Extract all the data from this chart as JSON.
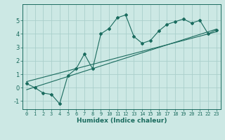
{
  "xlabel": "Humidex (Indice chaleur)",
  "ylabel": "",
  "bg_color": "#cce8e4",
  "grid_color": "#aacfcb",
  "line_color": "#1a6b5e",
  "xlim": [
    -0.5,
    23.5
  ],
  "ylim": [
    -1.6,
    6.2
  ],
  "xticks": [
    0,
    1,
    2,
    3,
    4,
    5,
    6,
    7,
    8,
    9,
    10,
    11,
    12,
    13,
    14,
    15,
    16,
    17,
    18,
    19,
    20,
    21,
    22,
    23
  ],
  "yticks": [
    -1,
    0,
    1,
    2,
    3,
    4,
    5
  ],
  "series1_x": [
    0,
    1,
    2,
    3,
    4,
    5,
    6,
    7,
    8,
    9,
    10,
    11,
    12,
    13,
    14,
    15,
    16,
    17,
    18,
    19,
    20,
    21,
    22,
    23
  ],
  "series1_y": [
    0.3,
    0.0,
    -0.4,
    -0.5,
    -1.2,
    0.9,
    1.4,
    2.5,
    1.4,
    4.0,
    4.4,
    5.2,
    5.4,
    3.8,
    3.3,
    3.5,
    4.2,
    4.7,
    4.9,
    5.1,
    4.8,
    5.0,
    4.0,
    4.3
  ],
  "trend1_x": [
    0,
    23
  ],
  "trend1_y": [
    -0.15,
    4.35
  ],
  "trend2_x": [
    0,
    23
  ],
  "trend2_y": [
    0.45,
    4.15
  ]
}
